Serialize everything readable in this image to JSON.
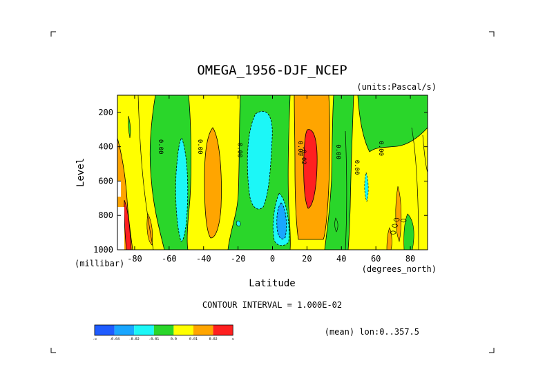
{
  "title": "OMEGA_1956-DJF_NCEP",
  "units": "(units:Pascal/s)",
  "xlabel": "Latitude",
  "xunit": "(degrees_north)",
  "ylabel": "Level",
  "yunit": "(millibar)",
  "contour_interval": "CONTOUR INTERVAL = 1.000E-02",
  "mean_note": "(mean) lon:0..357.5",
  "contour_labels": [
    "0.00",
    "0.00",
    "0.00",
    "0.00",
    "-0.02",
    "0.00",
    "0.00",
    "0.00"
  ],
  "colorbar": {
    "labels": [
      "-∞",
      "-0.04",
      "-0.02",
      "-0.01",
      "0.0",
      "0.01",
      "0.02",
      "∞"
    ],
    "colors": [
      "#1f5cff",
      "#19a6ff",
      "#1cf7f7",
      "#2ad62a",
      "#ffff00",
      "#ffa500",
      "#ff2020"
    ]
  },
  "chart_data": {
    "type": "heatmap",
    "title": "OMEGA_1956-DJF_NCEP",
    "units": "Pascal/s",
    "xlabel": "Latitude",
    "ylabel": "Level",
    "x_ticks": [
      -80,
      -60,
      -40,
      -20,
      0,
      20,
      40,
      60,
      80
    ],
    "y_ticks": [
      200,
      400,
      600,
      800,
      1000
    ],
    "xlim": [
      -90,
      90
    ],
    "ylim": [
      1000,
      100
    ],
    "contour_interval": 0.01,
    "levels": [
      "-inf",
      -0.04,
      -0.02,
      -0.01,
      0.0,
      0.01,
      0.02,
      "inf"
    ],
    "regions": [
      {
        "color": "#ffff00",
        "range": "0.0 to 0.01",
        "lat": [
          -90,
          90
        ],
        "p": [
          100,
          1000
        ]
      },
      {
        "color": "#2ad62a",
        "range": "-0.01 to 0.0",
        "lat": [
          -61,
          -42
        ],
        "p": [
          100,
          1000
        ]
      },
      {
        "color": "#2ad62a",
        "range": "-0.01 to 0.0",
        "lat": [
          -30,
          12
        ],
        "p": [
          100,
          1000
        ]
      },
      {
        "color": "#2ad62a",
        "range": "-0.01 to 0.0",
        "lat": [
          36,
          46
        ],
        "p": [
          100,
          1000
        ]
      },
      {
        "color": "#2ad62a",
        "range": "-0.01 to 0.0",
        "lat": [
          59,
          86
        ],
        "p": [
          100,
          500
        ]
      },
      {
        "color": "#2ad62a",
        "range": "-0.01 to 0.0",
        "lat": [
          -85,
          -83
        ],
        "p": [
          210,
          370
        ]
      },
      {
        "color": "#1cf7f7",
        "range": "-0.02 to -0.01",
        "lat": [
          -56,
          -48
        ],
        "p": [
          330,
          930
        ]
      },
      {
        "color": "#1cf7f7",
        "range": "-0.02 to -0.01",
        "lat": [
          -17,
          -1
        ],
        "p": [
          180,
          740
        ]
      },
      {
        "color": "#1cf7f7",
        "range": "-0.02 to -0.01",
        "lat": [
          2,
          10
        ],
        "p": [
          640,
          970
        ]
      },
      {
        "color": "#1cf7f7",
        "range": "-0.02 to -0.01",
        "lat": [
          54,
          56
        ],
        "p": [
          560,
          690
        ]
      },
      {
        "color": "#19a6ff",
        "range": "-0.04 to -0.02",
        "lat": [
          3,
          8
        ],
        "p": [
          780,
          910
        ]
      },
      {
        "color": "#ffa500",
        "range": "0.01 to 0.02",
        "lat": [
          -42,
          -32
        ],
        "p": [
          300,
          920
        ]
      },
      {
        "color": "#ffa500",
        "range": "0.01 to 0.02",
        "lat": [
          13,
          33
        ],
        "p": [
          140,
          920
        ]
      },
      {
        "color": "#ffa500",
        "range": "0.01 to 0.02",
        "lat": [
          -90,
          -82
        ],
        "p": [
          480,
          1000
        ]
      },
      {
        "color": "#ff2020",
        "range": ">0.02",
        "lat": [
          17,
          25
        ],
        "p": [
          280,
          700
        ]
      },
      {
        "color": "#ff2020",
        "range": ">0.02",
        "lat": [
          -87,
          -84
        ],
        "p": [
          700,
          1000
        ]
      }
    ]
  }
}
